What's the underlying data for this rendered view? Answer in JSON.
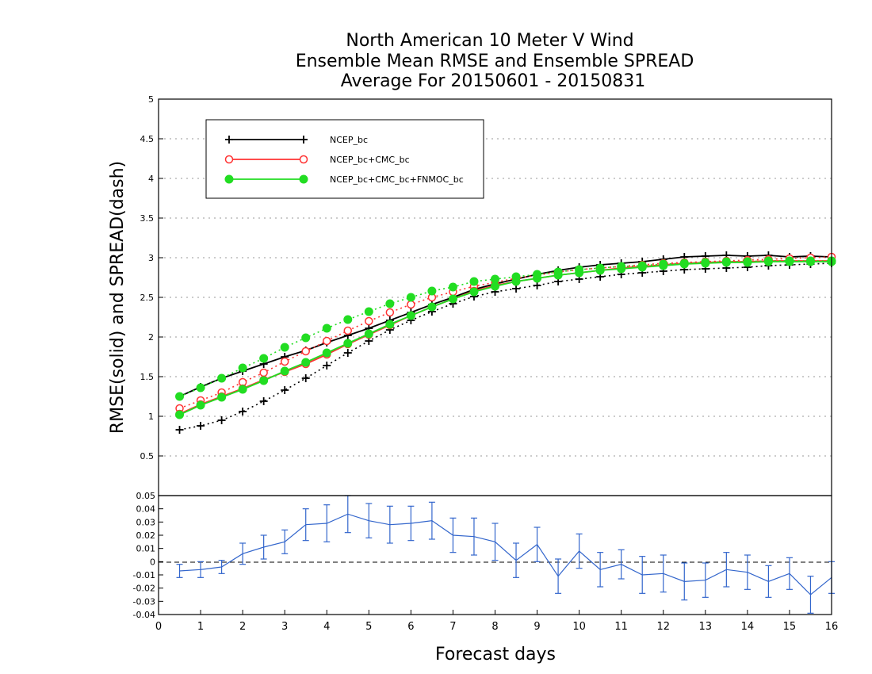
{
  "chart_data": [
    {
      "type": "line",
      "title_lines": [
        "North American 10 Meter V Wind",
        "Ensemble Mean RMSE and Ensemble SPREAD",
        "Average For 20150601 - 20150831"
      ],
      "ylabel": "RMSE(solid) and SPREAD(dash)",
      "xlim": [
        0,
        16
      ],
      "ylim": [
        0,
        5
      ],
      "yticks": [
        "0.5",
        "1",
        "1.5",
        "2",
        "2.5",
        "3",
        "3.5",
        "4",
        "4.5",
        "5"
      ],
      "grid": "horizontal dotted",
      "legend_position": "top-left",
      "x": [
        0.5,
        1,
        1.5,
        2,
        2.5,
        3,
        3.5,
        4,
        4.5,
        5,
        5.5,
        6,
        6.5,
        7,
        7.5,
        8,
        8.5,
        9,
        9.5,
        10,
        10.5,
        11,
        11.5,
        12,
        12.5,
        13,
        13.5,
        14,
        14.5,
        15,
        15.5,
        16
      ],
      "series": [
        {
          "name": "NCEP_bc",
          "color": "#000000",
          "marker": "plus",
          "rmse": [
            1.25,
            1.37,
            1.48,
            1.57,
            1.66,
            1.75,
            1.83,
            1.93,
            2.02,
            2.11,
            2.21,
            2.31,
            2.41,
            2.5,
            2.6,
            2.67,
            2.73,
            2.79,
            2.84,
            2.88,
            2.91,
            2.93,
            2.95,
            2.98,
            3.01,
            3.02,
            3.03,
            3.02,
            3.03,
            3.01,
            3.02,
            3.01
          ],
          "spread": [
            0.83,
            0.88,
            0.95,
            1.06,
            1.19,
            1.33,
            1.48,
            1.64,
            1.8,
            1.95,
            2.09,
            2.21,
            2.32,
            2.42,
            2.51,
            2.57,
            2.61,
            2.65,
            2.7,
            2.73,
            2.76,
            2.79,
            2.81,
            2.83,
            2.85,
            2.86,
            2.87,
            2.88,
            2.9,
            2.91,
            2.92,
            2.93
          ]
        },
        {
          "name": "NCEP_bc+CMC_bc",
          "color": "#ff3333",
          "marker": "open-circle",
          "rmse": [
            1.03,
            1.15,
            1.25,
            1.35,
            1.46,
            1.56,
            1.66,
            1.78,
            1.91,
            2.03,
            2.15,
            2.27,
            2.38,
            2.48,
            2.58,
            2.65,
            2.7,
            2.74,
            2.78,
            2.81,
            2.84,
            2.87,
            2.89,
            2.91,
            2.93,
            2.94,
            2.95,
            2.95,
            2.96,
            2.96,
            2.96,
            2.96
          ],
          "spread": [
            1.1,
            1.2,
            1.3,
            1.43,
            1.55,
            1.69,
            1.82,
            1.95,
            2.08,
            2.2,
            2.31,
            2.41,
            2.5,
            2.57,
            2.64,
            2.69,
            2.74,
            2.78,
            2.82,
            2.85,
            2.87,
            2.89,
            2.91,
            2.93,
            2.94,
            2.95,
            2.96,
            2.97,
            2.98,
            2.99,
            3.0,
            3.01
          ]
        },
        {
          "name": "NCEP_bc+CMC_bc+FNMOC_bc",
          "color": "#22dd22",
          "marker": "filled-circle",
          "rmse": [
            1.02,
            1.14,
            1.24,
            1.34,
            1.45,
            1.57,
            1.68,
            1.8,
            1.92,
            2.04,
            2.16,
            2.27,
            2.38,
            2.48,
            2.57,
            2.64,
            2.7,
            2.74,
            2.78,
            2.81,
            2.84,
            2.86,
            2.88,
            2.9,
            2.92,
            2.93,
            2.94,
            2.94,
            2.95,
            2.95,
            2.95,
            2.95
          ],
          "spread": [
            1.25,
            1.36,
            1.48,
            1.61,
            1.73,
            1.87,
            1.99,
            2.11,
            2.22,
            2.32,
            2.42,
            2.5,
            2.58,
            2.63,
            2.7,
            2.73,
            2.76,
            2.79,
            2.82,
            2.85,
            2.87,
            2.89,
            2.9,
            2.92,
            2.93,
            2.94,
            2.95,
            2.95,
            2.96,
            2.96,
            2.96,
            2.96
          ]
        }
      ]
    },
    {
      "type": "line",
      "subtype": "errorbar",
      "xlabel": "Forecast days",
      "xticks": [
        "0",
        "1",
        "2",
        "3",
        "4",
        "5",
        "6",
        "7",
        "8",
        "9",
        "10",
        "11",
        "12",
        "13",
        "14",
        "15",
        "16"
      ],
      "ylim": [
        -0.04,
        0.05
      ],
      "yticks": [
        "-0.04",
        "-0.03",
        "-0.02",
        "-0.01",
        "0",
        "0.01",
        "0.02",
        "0.03",
        "0.04",
        "0.05"
      ],
      "color": "#3366cc",
      "zero_line": "dashed",
      "x": [
        0.5,
        1,
        1.5,
        2,
        2.5,
        3,
        3.5,
        4,
        4.5,
        5,
        5.5,
        6,
        6.5,
        7,
        7.5,
        8,
        8.5,
        9,
        9.5,
        10,
        10.5,
        11,
        11.5,
        12,
        12.5,
        13,
        13.5,
        14,
        14.5,
        15,
        15.5,
        16
      ],
      "values": [
        -0.007,
        -0.006,
        -0.004,
        0.006,
        0.011,
        0.015,
        0.028,
        0.029,
        0.036,
        0.031,
        0.028,
        0.029,
        0.031,
        0.02,
        0.019,
        0.015,
        0.001,
        0.013,
        -0.011,
        0.008,
        -0.006,
        -0.002,
        -0.01,
        -0.009,
        -0.015,
        -0.014,
        -0.006,
        -0.008,
        -0.015,
        -0.009,
        -0.025,
        -0.012
      ],
      "error": [
        0.005,
        0.006,
        0.005,
        0.008,
        0.009,
        0.009,
        0.012,
        0.014,
        0.014,
        0.013,
        0.014,
        0.013,
        0.014,
        0.013,
        0.014,
        0.014,
        0.013,
        0.013,
        0.013,
        0.013,
        0.013,
        0.011,
        0.014,
        0.014,
        0.014,
        0.013,
        0.013,
        0.013,
        0.012,
        0.012,
        0.014,
        0.012
      ]
    }
  ]
}
